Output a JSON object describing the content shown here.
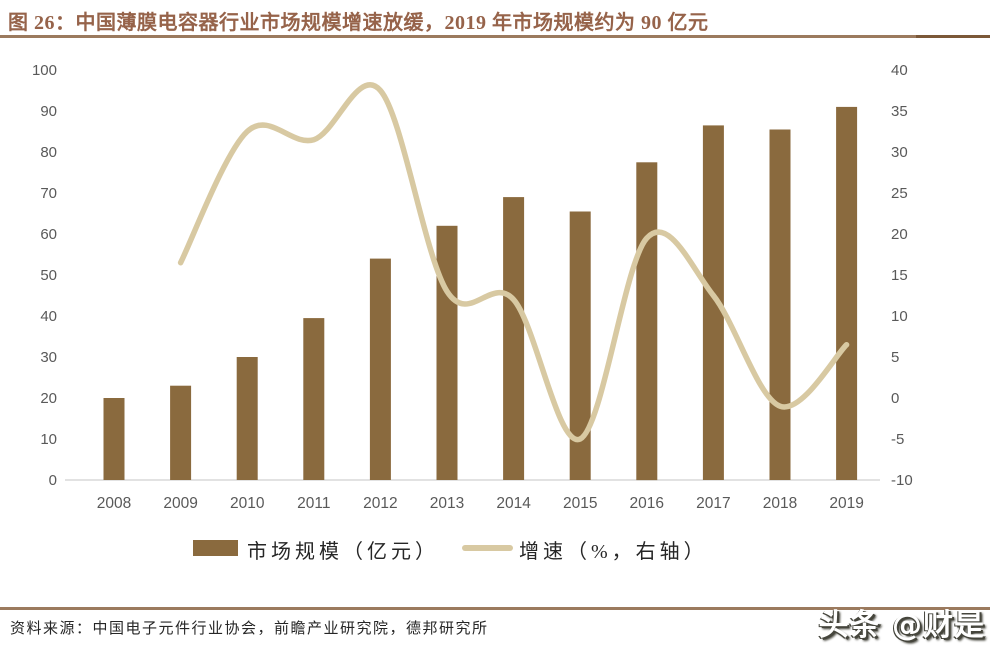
{
  "header": {
    "title": "图 26：中国薄膜电容器行业市场规模增速放缓，2019 年市场规模约为 90 亿元"
  },
  "chart_data": {
    "type": "bar",
    "subtype": "combo-bar-line",
    "title": "中国薄膜电容器行业市场规模增速放缓，2019 年市场规模约为 90 亿元",
    "categories": [
      "2008",
      "2009",
      "2010",
      "2011",
      "2012",
      "2013",
      "2014",
      "2015",
      "2016",
      "2017",
      "2018",
      "2019"
    ],
    "series": [
      {
        "name": "市场规模（亿元）",
        "type": "bar",
        "axis": "left",
        "values": [
          20,
          23,
          30,
          39.5,
          54,
          62,
          69,
          65.5,
          77.5,
          86.5,
          85.5,
          91
        ]
      },
      {
        "name": "增速（%，右轴）",
        "type": "line",
        "axis": "right",
        "values": [
          null,
          16.5,
          32.5,
          31.5,
          37.5,
          13,
          12,
          -5,
          19.5,
          12.5,
          -1,
          6.5
        ]
      }
    ],
    "xlabel": "",
    "ylabel_left": "",
    "ylabel_right": "",
    "left_axis": {
      "min": 0,
      "max": 100,
      "step": 10,
      "ticks": [
        0,
        10,
        20,
        30,
        40,
        50,
        60,
        70,
        80,
        90,
        100
      ]
    },
    "right_axis": {
      "min": -10,
      "max": 40,
      "step": 5,
      "ticks": [
        -10,
        -5,
        0,
        5,
        10,
        15,
        20,
        25,
        30,
        35,
        40
      ]
    },
    "grid": false,
    "legend_position": "bottom"
  },
  "legend": {
    "bar_label": "市场规模（亿元）",
    "line_label": "增速（%，右轴）"
  },
  "footer": {
    "source": "资料来源：中国电子元件行业协会，前瞻产业研究院，德邦研究所",
    "watermark": "头条 @财是"
  },
  "colors": {
    "bar": "#8A6A3E",
    "line": "#D8C9A2",
    "title_text": "#96634A",
    "rule": "#9B7A5E",
    "rule_dark_end": "#7B5838",
    "axis_text": "#595959",
    "axis_line": "#D9D9D9",
    "legend_text": "#262626",
    "source_text": "#262626",
    "watermark_fill": "#FFFFFF",
    "watermark_shadow": "#45453C"
  }
}
